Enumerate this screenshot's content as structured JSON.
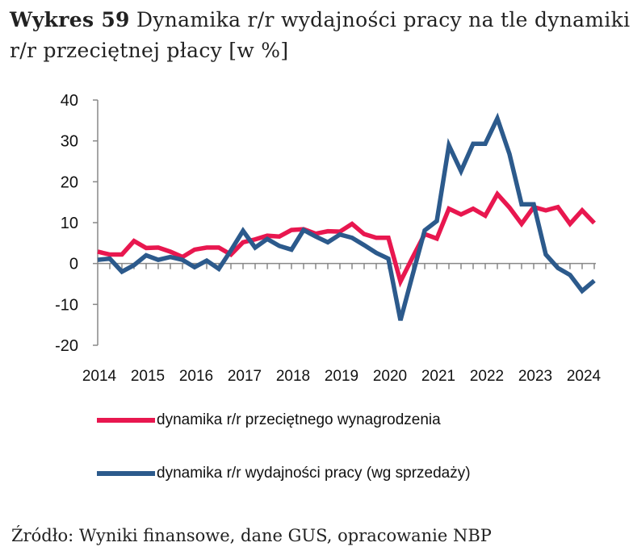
{
  "title": {
    "prefix": "Wykres 59",
    "text": "Dynamika r/r wydajności pracy na tle dynamiki r/r przeciętnej płacy [w %]"
  },
  "source": "Źródło: Wyniki finansowe, dane GUS, opracowanie NBP",
  "chart_data": {
    "type": "line",
    "x_start": "2014Q1",
    "frequency": "quarterly",
    "x_tick_labels": [
      "2014",
      "2015",
      "2016",
      "2017",
      "2018",
      "2019",
      "2020",
      "2021",
      "2022",
      "2023",
      "2024"
    ],
    "ylim": [
      -20,
      40
    ],
    "y_ticks": [
      -20,
      -10,
      0,
      10,
      20,
      30,
      40
    ],
    "grid": false,
    "legend": "bottom",
    "series": [
      {
        "name": "dynamika r/r przeciętnego wynagrodzenia",
        "color": "#e8174f",
        "values": [
          2.9,
          2.2,
          2.2,
          5.5,
          3.8,
          3.9,
          2.9,
          1.6,
          3.4,
          3.9,
          3.9,
          2.2,
          5.2,
          5.9,
          6.8,
          6.6,
          8.2,
          8.4,
          7.3,
          7.9,
          7.8,
          9.7,
          7.2,
          6.3,
          6.3,
          -4.4,
          1.5,
          7.2,
          6.1,
          13.4,
          12.0,
          13.4,
          11.7,
          17.0,
          13.7,
          9.7,
          13.8,
          13.0,
          13.8,
          9.7,
          13.0,
          9.9
        ]
      },
      {
        "name": "dynamika r/r wydajności pracy (wg sprzedaży)",
        "color": "#2c5a8c",
        "values": [
          0.9,
          1.2,
          -2.0,
          -0.4,
          2.0,
          0.9,
          1.6,
          0.9,
          -0.9,
          0.7,
          -1.3,
          3.2,
          8.0,
          3.9,
          6.0,
          4.3,
          3.4,
          8.2,
          6.6,
          5.2,
          7.1,
          6.3,
          4.5,
          2.6,
          1.2,
          -13.9,
          -2.8,
          8.1,
          10.4,
          28.9,
          22.6,
          29.3,
          29.3,
          35.5,
          26.8,
          14.5,
          14.5,
          2.2,
          -1.1,
          -2.8,
          -6.7,
          -4.2
        ]
      }
    ]
  }
}
